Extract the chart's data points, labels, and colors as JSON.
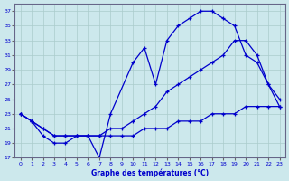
{
  "xlabel": "Graphe des températures (°C)",
  "bg_color": "#cce8ec",
  "grid_color": "#aacccc",
  "line_color": "#0000cc",
  "ylim": [
    17,
    38
  ],
  "xlim": [
    -0.5,
    23.5
  ],
  "yticks": [
    17,
    19,
    21,
    23,
    25,
    27,
    29,
    31,
    33,
    35,
    37
  ],
  "xticks": [
    0,
    1,
    2,
    3,
    4,
    5,
    6,
    7,
    8,
    9,
    10,
    11,
    12,
    13,
    14,
    15,
    16,
    17,
    18,
    19,
    20,
    21,
    22,
    23
  ],
  "line1_x": [
    0,
    1,
    2,
    3,
    4,
    5,
    6,
    7,
    8,
    10,
    11,
    12,
    13,
    14,
    15,
    16,
    17,
    18,
    19,
    20,
    21,
    22,
    23
  ],
  "line1_y": [
    23,
    22,
    20,
    19,
    19,
    20,
    20,
    17,
    23,
    30,
    32,
    27,
    33,
    35,
    36,
    37,
    37,
    36,
    35,
    31,
    30,
    27,
    25
  ],
  "line2_x": [
    0,
    1,
    2,
    3,
    4,
    5,
    6,
    7,
    8,
    9,
    10,
    11,
    12,
    13,
    14,
    15,
    16,
    17,
    18,
    19,
    20,
    21,
    22,
    23
  ],
  "line2_y": [
    23,
    22,
    21,
    20,
    20,
    20,
    20,
    20,
    21,
    21,
    22,
    23,
    24,
    26,
    27,
    28,
    29,
    30,
    31,
    33,
    33,
    31,
    27,
    24
  ],
  "line3_x": [
    0,
    1,
    2,
    3,
    4,
    5,
    6,
    7,
    8,
    9,
    10,
    11,
    12,
    13,
    14,
    15,
    16,
    17,
    18,
    19,
    20,
    21,
    22,
    23
  ],
  "line3_y": [
    23,
    22,
    21,
    20,
    20,
    20,
    20,
    20,
    20,
    20,
    20,
    21,
    21,
    21,
    22,
    22,
    22,
    23,
    23,
    23,
    24,
    24,
    24,
    24
  ]
}
